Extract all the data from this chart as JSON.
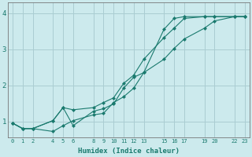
{
  "xlabel": "Humidex (Indice chaleur)",
  "ylabel": "",
  "bg_color": "#cceaed",
  "grid_color": "#aacdd2",
  "line_color": "#1a7a6e",
  "xlim": [
    -0.5,
    23.5
  ],
  "ylim": [
    0.55,
    4.3
  ],
  "xticks": [
    0,
    1,
    2,
    4,
    5,
    6,
    8,
    9,
    10,
    11,
    12,
    13,
    15,
    16,
    17,
    19,
    20,
    22,
    23
  ],
  "yticks": [
    1,
    2,
    3,
    4
  ],
  "line1_x": [
    0,
    1,
    2,
    4,
    5,
    6,
    8,
    9,
    10,
    11,
    12,
    13,
    15,
    16,
    17,
    19,
    20,
    22,
    23
  ],
  "line1_y": [
    0.95,
    0.8,
    0.8,
    1.02,
    1.38,
    0.88,
    1.28,
    1.35,
    1.48,
    1.92,
    2.22,
    2.35,
    3.55,
    3.85,
    3.9,
    3.9,
    3.9,
    3.9,
    3.9
  ],
  "line2_x": [
    0,
    1,
    2,
    4,
    5,
    6,
    8,
    9,
    10,
    11,
    12,
    13,
    15,
    16,
    17,
    19,
    20,
    22,
    23
  ],
  "line2_y": [
    0.95,
    0.8,
    0.8,
    1.02,
    1.38,
    1.32,
    1.38,
    1.52,
    1.65,
    2.05,
    2.28,
    2.72,
    3.32,
    3.58,
    3.85,
    3.9,
    3.9,
    3.9,
    3.9
  ],
  "line3_x": [
    0,
    1,
    2,
    4,
    5,
    6,
    8,
    9,
    10,
    11,
    12,
    13,
    15,
    16,
    17,
    19,
    20,
    22,
    23
  ],
  "line3_y": [
    0.95,
    0.8,
    0.8,
    0.72,
    0.88,
    1.02,
    1.18,
    1.22,
    1.52,
    1.68,
    1.92,
    2.35,
    2.72,
    3.02,
    3.28,
    3.58,
    3.78,
    3.9,
    3.9
  ]
}
